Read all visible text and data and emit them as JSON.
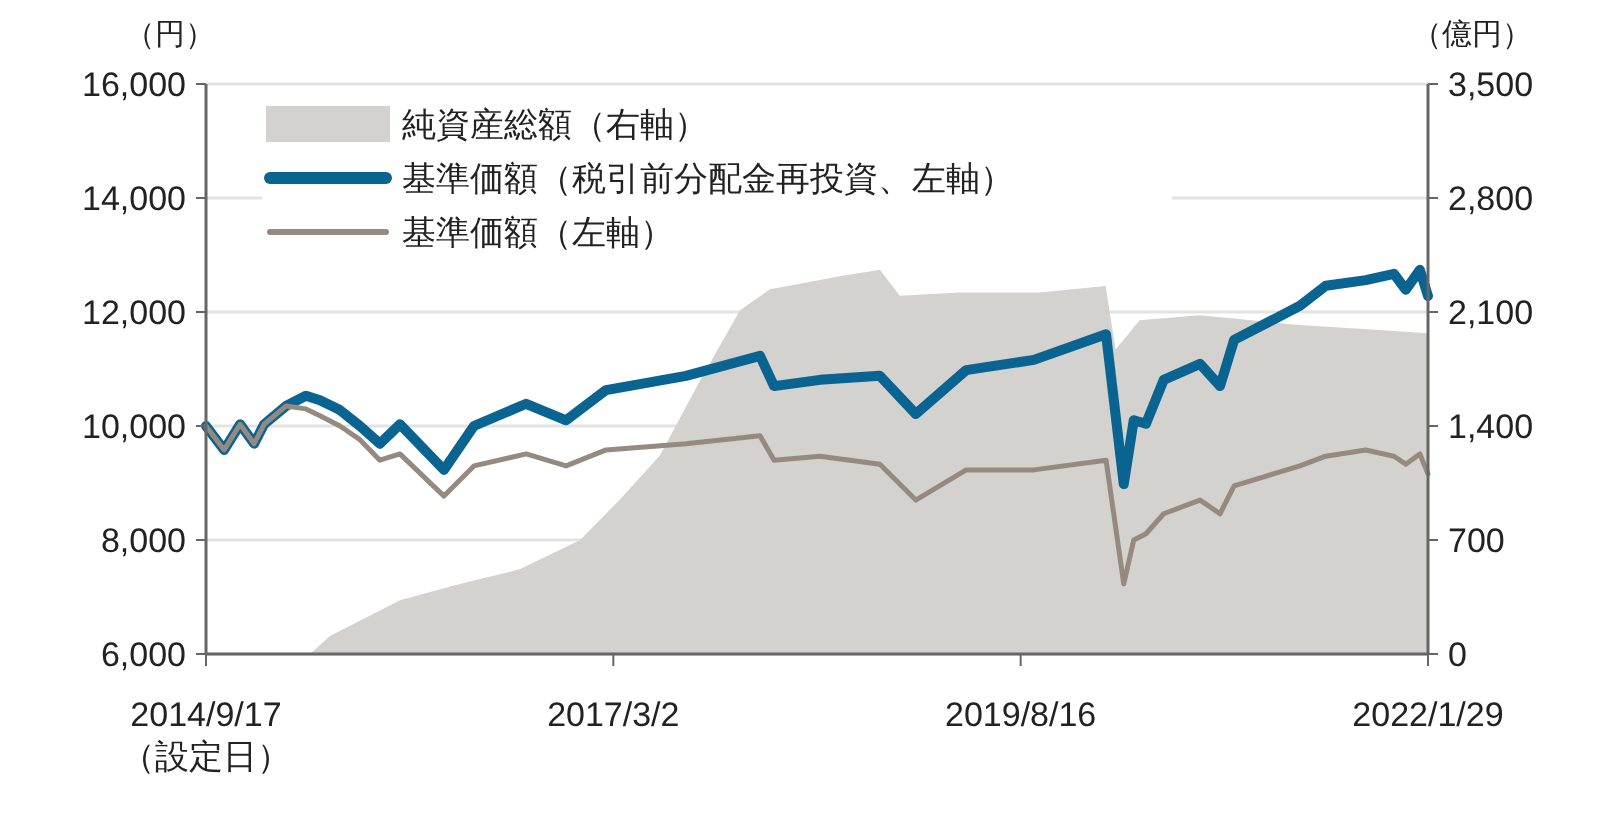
{
  "chart_data": {
    "type": "line",
    "ylabel": "（円）",
    "y2label": "（億円）",
    "x": [
      "2014-09-17",
      "2014-10-27",
      "2014-12-01",
      "2015-01-01",
      "2015-01-23",
      "2015-03-12",
      "2015-04-25",
      "2015-05-26",
      "2015-07-09",
      "2015-08-22",
      "2015-10-05",
      "2015-11-18",
      "2016-02-23",
      "2016-04-29",
      "2016-08-22",
      "2016-11-18",
      "2017-02-14",
      "2017-08-09",
      "2018-01-19",
      "2018-02-19",
      "2018-05-31",
      "2018-10-10",
      "2018-12-28",
      "2019-04-18",
      "2019-09-14",
      "2020-02-20",
      "2020-03-30",
      "2020-04-21",
      "2020-05-18",
      "2020-06-26",
      "2020-09-14",
      "2020-10-28",
      "2020-11-28",
      "2021-04-22",
      "2021-06-18",
      "2021-09-14",
      "2021-11-15",
      "2021-12-11",
      "2022-01-11",
      "2022-01-29"
    ],
    "series": [
      {
        "name": "純資産総額（右軸）",
        "type": "area",
        "axis": "y2",
        "color": "#d3d2ce",
        "x": [
          "2014-09-17",
          "2015-05-04",
          "2015-06-17",
          "2015-11-18",
          "2016-03-29",
          "2016-08-08",
          "2016-12-19",
          "2017-03-17",
          "2017-06-13",
          "2017-09-09",
          "2017-12-06",
          "2018-02-10",
          "2018-07-14",
          "2018-10-10",
          "2018-11-23",
          "2019-04-04",
          "2019-09-27",
          "2020-02-19",
          "2020-03-12",
          "2020-05-04",
          "2020-09-13",
          "2021-04-21",
          "2021-10-14",
          "2022-01-29"
        ],
        "values": [
          0,
          0,
          110,
          330,
          430,
          520,
          700,
          950,
          1220,
          1680,
          2110,
          2240,
          2320,
          2360,
          2200,
          2220,
          2220,
          2260,
          1870,
          2050,
          2080,
          2020,
          1990,
          1970
        ]
      },
      {
        "name": "基準価額（税引前分配金再投資、左軸）",
        "color": "#0a6491",
        "values": [
          10000,
          9580,
          10030,
          9690,
          10030,
          10350,
          10530,
          10450,
          10280,
          10000,
          9690,
          10030,
          9230,
          10000,
          10390,
          10100,
          10630,
          10880,
          11230,
          10700,
          10810,
          10880,
          10210,
          10980,
          11160,
          11610,
          8980,
          10100,
          10040,
          10810,
          11090,
          10700,
          11510,
          12110,
          12460,
          12560,
          12670,
          12390,
          12740,
          12280
        ]
      },
      {
        "name": "基準価額（左軸）",
        "color": "#968a80",
        "values": [
          10000,
          9580,
          10030,
          9690,
          10030,
          10350,
          10300,
          10180,
          10000,
          9760,
          9400,
          9510,
          8770,
          9300,
          9510,
          9300,
          9580,
          9690,
          9830,
          9400,
          9470,
          9330,
          8700,
          9230,
          9230,
          9400,
          7230,
          8000,
          8110,
          8460,
          8700,
          8460,
          8950,
          9300,
          9470,
          9580,
          9470,
          9330,
          9510,
          9160
        ]
      }
    ],
    "xlim": [
      "2014-09-17",
      "2022-01-29"
    ],
    "xticks": [
      {
        "value": "2014-09-17",
        "label": "2014/9/17\n（設定日）"
      },
      {
        "value": "2017-03-02",
        "label": "2017/3/2"
      },
      {
        "value": "2019-08-16",
        "label": "2019/8/16"
      },
      {
        "value": "2022-01-29",
        "label": "2022/1/29"
      }
    ],
    "ylim": [
      6000,
      16000
    ],
    "yticks": [
      {
        "value": 6000,
        "label": "6,000"
      },
      {
        "value": 8000,
        "label": "8,000"
      },
      {
        "value": 10000,
        "label": "10,000"
      },
      {
        "value": 12000,
        "label": "12,000"
      },
      {
        "value": 14000,
        "label": "14,000"
      },
      {
        "value": 16000,
        "label": "16,000"
      }
    ],
    "y2lim": [
      0,
      3500
    ],
    "y2ticks": [
      0,
      {
        "value": 700,
        "label": "700"
      },
      {
        "value": 1400,
        "label": "1,400"
      },
      {
        "value": 2100,
        "label": "2,100"
      },
      {
        "value": 2800,
        "label": "2,800"
      },
      {
        "value": 3500,
        "label": "3,500"
      }
    ],
    "grid": "y",
    "legend": "top left"
  }
}
